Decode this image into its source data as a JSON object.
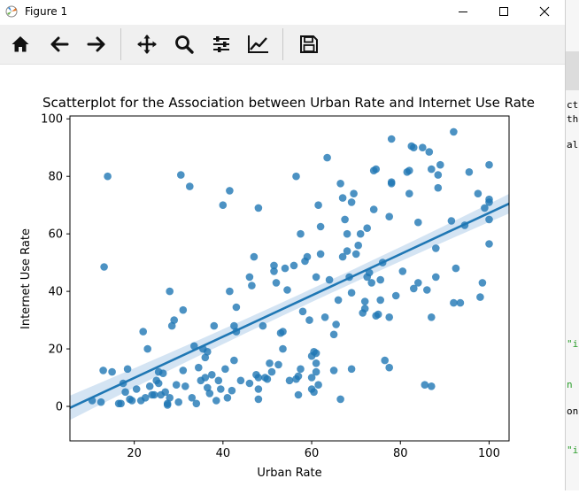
{
  "window": {
    "title": "Figure 1",
    "controls": [
      "minimize",
      "maximize",
      "close"
    ]
  },
  "toolbar": {
    "buttons": [
      {
        "name": "home",
        "icon": "home-icon"
      },
      {
        "name": "back",
        "icon": "arrow-left-icon"
      },
      {
        "name": "forward",
        "icon": "arrow-right-icon"
      },
      {
        "name": "pan",
        "icon": "move-icon"
      },
      {
        "name": "zoom",
        "icon": "magnifier-icon"
      },
      {
        "name": "configure-subplots",
        "icon": "sliders-icon"
      },
      {
        "name": "edit-axis",
        "icon": "line-chart-icon"
      },
      {
        "name": "save",
        "icon": "floppy-disk-icon"
      }
    ]
  },
  "side_panel": {
    "fragments": [
      "ct",
      "the",
      "all",
      "\"i",
      "n",
      "on",
      "\"i"
    ]
  },
  "chart_data": {
    "type": "scatter",
    "title": "Scatterplot for the Association between Urban Rate and Internet Use Rate",
    "xlabel": "Urban Rate",
    "ylabel": "Internet Use Rate",
    "xlim": [
      5.5,
      104.5
    ],
    "ylim": [
      -12,
      101
    ],
    "xticks": [
      20,
      40,
      60,
      80,
      100
    ],
    "yticks": [
      0,
      20,
      40,
      60,
      80,
      100
    ],
    "point_color": "#1f77b4",
    "regression": {
      "x": [
        5.5,
        104.5
      ],
      "y": [
        -0.5,
        70.5
      ],
      "ci_band_color": "#c6dbef"
    },
    "points": [
      [
        10.5,
        2
      ],
      [
        12.5,
        1.5
      ],
      [
        13,
        12.5
      ],
      [
        13.2,
        48.5
      ],
      [
        14,
        80
      ],
      [
        15,
        12
      ],
      [
        16.5,
        1
      ],
      [
        17,
        1
      ],
      [
        17.5,
        8
      ],
      [
        18,
        5
      ],
      [
        18.5,
        13
      ],
      [
        19,
        2.5
      ],
      [
        19.5,
        2
      ],
      [
        20.5,
        6
      ],
      [
        21.5,
        2
      ],
      [
        22,
        26
      ],
      [
        22.5,
        3
      ],
      [
        23,
        20
      ],
      [
        23.5,
        7
      ],
      [
        24,
        4
      ],
      [
        24.5,
        4
      ],
      [
        25,
        9
      ],
      [
        25.5,
        12
      ],
      [
        25.5,
        8
      ],
      [
        26,
        4
      ],
      [
        26.5,
        11.5
      ],
      [
        27,
        5
      ],
      [
        27.5,
        1
      ],
      [
        27.5,
        0.5
      ],
      [
        28,
        3
      ],
      [
        28,
        40
      ],
      [
        28.5,
        28
      ],
      [
        29,
        30
      ],
      [
        29.5,
        7.5
      ],
      [
        30,
        1.5
      ],
      [
        30.5,
        80.5
      ],
      [
        31,
        12.5
      ],
      [
        31,
        33.5
      ],
      [
        31.5,
        7
      ],
      [
        32.5,
        76.5
      ],
      [
        33,
        3
      ],
      [
        33.5,
        21
      ],
      [
        34,
        1
      ],
      [
        34.5,
        13.5
      ],
      [
        35,
        9
      ],
      [
        35.5,
        20
      ],
      [
        36,
        10
      ],
      [
        36,
        17
      ],
      [
        36.5,
        6.5
      ],
      [
        36.5,
        19
      ],
      [
        37,
        4.5
      ],
      [
        37.5,
        11
      ],
      [
        38,
        28
      ],
      [
        38.5,
        2
      ],
      [
        39,
        9
      ],
      [
        39.5,
        6
      ],
      [
        40,
        70
      ],
      [
        40.5,
        13
      ],
      [
        41,
        3
      ],
      [
        41.5,
        75
      ],
      [
        41.5,
        40
      ],
      [
        42,
        5.5
      ],
      [
        42.5,
        16
      ],
      [
        42.5,
        28
      ],
      [
        43,
        26
      ],
      [
        43,
        34.5
      ],
      [
        44,
        9
      ],
      [
        46,
        8
      ],
      [
        46,
        45
      ],
      [
        46.5,
        42
      ],
      [
        47,
        52
      ],
      [
        47.5,
        11
      ],
      [
        48,
        6
      ],
      [
        48,
        10
      ],
      [
        48,
        69
      ],
      [
        48,
        2.5
      ],
      [
        49,
        28
      ],
      [
        49.5,
        10
      ],
      [
        50,
        9.5
      ],
      [
        50.5,
        15
      ],
      [
        51,
        12
      ],
      [
        51.5,
        49
      ],
      [
        51.5,
        47
      ],
      [
        52,
        43
      ],
      [
        52.5,
        14.5
      ],
      [
        53,
        25.5
      ],
      [
        53.5,
        26
      ],
      [
        53.5,
        20
      ],
      [
        54,
        48
      ],
      [
        54.5,
        40.5
      ],
      [
        55,
        9
      ],
      [
        56,
        49
      ],
      [
        56.5,
        9.5
      ],
      [
        56.5,
        80
      ],
      [
        57,
        4
      ],
      [
        57,
        10.5
      ],
      [
        57.5,
        13
      ],
      [
        57.5,
        60
      ],
      [
        58,
        33
      ],
      [
        58.5,
        50.5
      ],
      [
        59,
        52
      ],
      [
        59.5,
        30
      ],
      [
        60,
        6
      ],
      [
        60,
        10
      ],
      [
        60,
        17.5
      ],
      [
        60.5,
        5
      ],
      [
        60.5,
        19
      ],
      [
        61,
        15
      ],
      [
        61,
        18.5
      ],
      [
        61,
        12
      ],
      [
        61,
        45
      ],
      [
        61.5,
        7.5
      ],
      [
        61.5,
        70
      ],
      [
        62,
        62.5
      ],
      [
        62,
        53
      ],
      [
        63,
        31
      ],
      [
        63.5,
        86.5
      ],
      [
        64,
        44
      ],
      [
        65,
        25
      ],
      [
        65,
        12.5
      ],
      [
        65.5,
        28.5
      ],
      [
        66,
        37
      ],
      [
        66.5,
        2.5
      ],
      [
        66.5,
        77.5
      ],
      [
        67,
        52
      ],
      [
        67,
        72.5
      ],
      [
        67.5,
        65
      ],
      [
        68,
        60
      ],
      [
        68,
        54
      ],
      [
        68.5,
        45
      ],
      [
        69,
        71
      ],
      [
        69,
        13
      ],
      [
        69,
        39.5
      ],
      [
        69.5,
        74
      ],
      [
        70,
        53
      ],
      [
        70.5,
        56
      ],
      [
        71,
        60
      ],
      [
        71.5,
        32.5
      ],
      [
        72,
        34
      ],
      [
        72,
        36.5
      ],
      [
        72.5,
        62
      ],
      [
        72.5,
        45
      ],
      [
        73,
        46.5
      ],
      [
        73.5,
        43
      ],
      [
        74,
        68.5
      ],
      [
        74,
        82
      ],
      [
        74.5,
        82.5
      ],
      [
        74.5,
        31.5
      ],
      [
        75,
        32
      ],
      [
        75.5,
        37
      ],
      [
        75.5,
        44
      ],
      [
        76,
        50
      ],
      [
        76.5,
        16
      ],
      [
        77.5,
        31
      ],
      [
        77.5,
        66
      ],
      [
        77.5,
        13.5
      ],
      [
        78,
        78
      ],
      [
        78,
        93
      ],
      [
        78,
        77.5
      ],
      [
        79,
        38.5
      ],
      [
        80.5,
        47
      ],
      [
        81.5,
        81.5
      ],
      [
        82,
        74
      ],
      [
        82,
        82
      ],
      [
        82.5,
        90.5
      ],
      [
        83,
        41
      ],
      [
        83,
        90
      ],
      [
        84,
        64
      ],
      [
        84,
        43
      ],
      [
        85,
        90
      ],
      [
        85.5,
        7.5
      ],
      [
        86,
        40.5
      ],
      [
        86.5,
        88.5
      ],
      [
        87,
        82.5
      ],
      [
        87,
        31
      ],
      [
        87,
        7
      ],
      [
        88,
        45
      ],
      [
        88,
        55
      ],
      [
        88.5,
        76
      ],
      [
        88.5,
        80.5
      ],
      [
        89,
        84
      ],
      [
        91.5,
        64.5
      ],
      [
        92,
        95.5
      ],
      [
        92.5,
        48
      ],
      [
        92,
        36
      ],
      [
        93.5,
        36
      ],
      [
        94.5,
        63
      ],
      [
        95.5,
        81.5
      ],
      [
        97.5,
        74
      ],
      [
        98,
        38
      ],
      [
        98.5,
        43
      ],
      [
        99,
        69
      ],
      [
        100,
        72
      ],
      [
        100,
        65
      ],
      [
        100,
        71
      ],
      [
        100,
        84
      ],
      [
        100,
        56.5
      ]
    ]
  }
}
